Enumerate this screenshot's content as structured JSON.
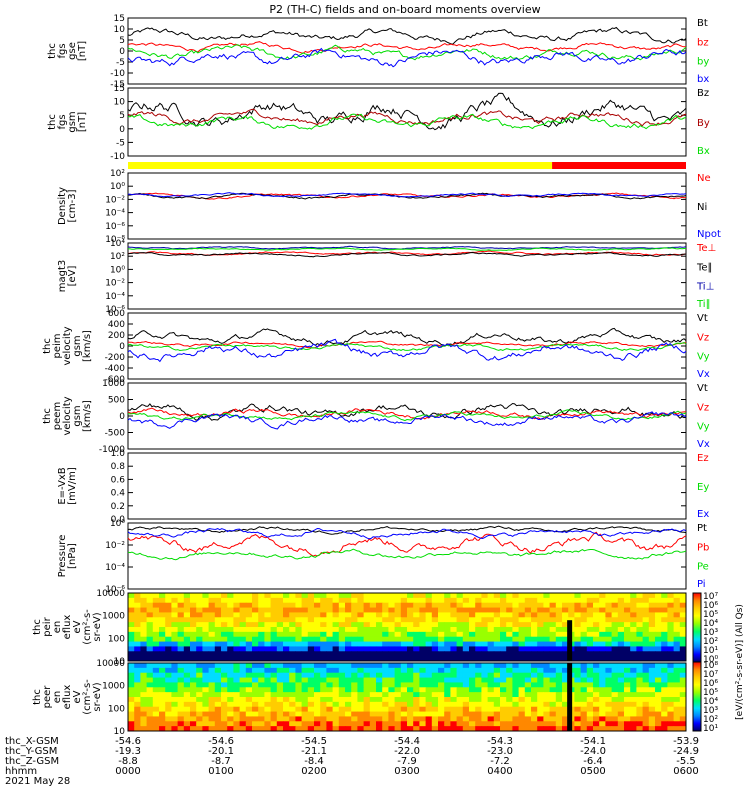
{
  "title": "P2 (TH-C) fields and on-board moments overview",
  "colors": {
    "black": "#000000",
    "red": "#ff0000",
    "green": "#00dd00",
    "blue": "#0000ff",
    "yellow": "#ffff00"
  },
  "chart_data": [
    {
      "id": "fgs-gse",
      "type": "line",
      "ylabel": [
        "thc",
        "fgs",
        "gse",
        "[nT]"
      ],
      "ylim": [
        -15,
        15
      ],
      "yticks": [
        "15",
        "10",
        "5",
        "0",
        "-5",
        "-10",
        "-15"
      ],
      "series": [
        {
          "name": "Bt",
          "color": "#000000",
          "level": 7,
          "amp": 3
        },
        {
          "name": "bz",
          "color": "#ff0000",
          "level": 2,
          "amp": 2
        },
        {
          "name": "by",
          "color": "#00dd00",
          "level": -1,
          "amp": 3
        },
        {
          "name": "bx",
          "color": "#0000ff",
          "level": -3,
          "amp": 4
        }
      ]
    },
    {
      "id": "fgs-gsm",
      "type": "line",
      "ylabel": [
        "thc",
        "fgs",
        "gsm",
        "[nT]"
      ],
      "ylim": [
        -15,
        15
      ],
      "yticks": [
        "15",
        "10",
        "5",
        "0",
        "-5",
        "-10"
      ],
      "series": [
        {
          "name": "Bz",
          "color": "#000000",
          "level": 4,
          "amp": 6
        },
        {
          "name": "By",
          "color": "#aa0000",
          "level": 2,
          "amp": 3
        },
        {
          "name": "Bx",
          "color": "#00dd00",
          "level": 0,
          "amp": 3
        }
      ]
    },
    {
      "id": "mode-bar",
      "type": "bar",
      "segments": [
        {
          "from": 0,
          "to": 0.76,
          "color": "#ffff00"
        },
        {
          "from": 0.76,
          "to": 1,
          "color": "#ff0000"
        }
      ]
    },
    {
      "id": "density",
      "type": "line",
      "log": true,
      "ylabel": [
        "Density",
        "[cm-3]"
      ],
      "ylim": [
        -8,
        3
      ],
      "yticks": [
        "10²",
        "10⁰",
        "10⁻²",
        "10⁻⁴",
        "10⁻⁶",
        "10⁻⁸"
      ],
      "series": [
        {
          "name": "Ne",
          "color": "#ff0000",
          "level": -0.8,
          "amp": 0.4
        },
        {
          "name": "Ni",
          "color": "#000000",
          "level": -0.9,
          "amp": 0.4
        },
        {
          "name": "Npot",
          "color": "#0000ff",
          "level": -0.7,
          "amp": 0.3
        }
      ]
    },
    {
      "id": "temperature",
      "type": "line",
      "log": true,
      "ylabel": [
        "magt3",
        "[eV]"
      ],
      "ylim": [
        -7,
        4
      ],
      "yticks": [
        "10⁴",
        "10²",
        "10⁰",
        "10⁻²",
        "10⁻⁴",
        "10⁻⁶"
      ],
      "series": [
        {
          "name": "Te⊥",
          "color": "#ff0000",
          "level": 2.3,
          "amp": 0.3
        },
        {
          "name": "Te∥",
          "color": "#000000",
          "level": 2.1,
          "amp": 0.3
        },
        {
          "name": "Ti⊥",
          "color": "#0000aa",
          "level": 3.2,
          "amp": 0.2
        },
        {
          "name": "Ti∥",
          "color": "#00dd00",
          "level": 3.0,
          "amp": 0.2
        }
      ]
    },
    {
      "id": "peim-velocity",
      "type": "line",
      "ylabel": [
        "thc",
        "peim",
        "velocity",
        "gsm",
        "[km/s]"
      ],
      "ylim": [
        -600,
        600
      ],
      "yticks": [
        "600",
        "400",
        "200",
        "0",
        "-200",
        "-400",
        "-600"
      ],
      "series": [
        {
          "name": "Vt",
          "color": "#000000",
          "level": 150,
          "amp": 120
        },
        {
          "name": "Vz",
          "color": "#ff0000",
          "level": 40,
          "amp": 50
        },
        {
          "name": "Vy",
          "color": "#00dd00",
          "level": -20,
          "amp": 60
        },
        {
          "name": "Vx",
          "color": "#0000ff",
          "level": -100,
          "amp": 150
        }
      ]
    },
    {
      "id": "peem-velocity",
      "type": "line",
      "ylabel": [
        "thc",
        "peem",
        "velocity",
        "gsm",
        "[km/s]"
      ],
      "ylim": [
        -1000,
        1000
      ],
      "yticks": [
        "1000",
        "500",
        "0",
        "-500",
        "-1000"
      ],
      "series": [
        {
          "name": "Vt",
          "color": "#000000",
          "level": 150,
          "amp": 250
        },
        {
          "name": "Vz",
          "color": "#ff0000",
          "level": 80,
          "amp": 150
        },
        {
          "name": "Vy",
          "color": "#00dd00",
          "level": 0,
          "amp": 120
        },
        {
          "name": "Vx",
          "color": "#0000ff",
          "level": -100,
          "amp": 200
        }
      ]
    },
    {
      "id": "efield",
      "type": "line",
      "ylabel": [
        "E=-VxB",
        "[mV/m]"
      ],
      "ylim": [
        0,
        1
      ],
      "yticks": [
        "1.0",
        "0.8",
        "0.6",
        "0.4",
        "0.2",
        "0.0"
      ],
      "series": [
        {
          "name": "Ez",
          "color": "#ff0000"
        },
        {
          "name": "Ey",
          "color": "#00dd00"
        },
        {
          "name": "Ex",
          "color": "#0000ff"
        }
      ]
    },
    {
      "id": "pressure",
      "type": "line",
      "log": true,
      "ylabel": [
        "Pressure",
        "[nPa]"
      ],
      "ylim": [
        -6,
        0
      ],
      "yticks": [
        "10⁰",
        "10⁻²",
        "10⁻⁴",
        "10⁻⁶"
      ],
      "series": [
        {
          "name": "Pt",
          "color": "#000000",
          "level": -0.6,
          "amp": 0.3
        },
        {
          "name": "Pb",
          "color": "#ff0000",
          "level": -1.8,
          "amp": 0.8
        },
        {
          "name": "Pe",
          "color": "#00dd00",
          "level": -2.8,
          "amp": 0.4
        },
        {
          "name": "Pi",
          "color": "#0000ff",
          "level": -0.9,
          "amp": 0.4
        }
      ]
    },
    {
      "id": "peir-spectrogram",
      "type": "heatmap",
      "ylabel": [
        "thc",
        "peir",
        "en",
        "eflux",
        "eV",
        "(cm²-s-",
        "sr-eV)"
      ],
      "log": true,
      "ylim": [
        1,
        4.2
      ],
      "yticks": [
        "10000",
        "1000",
        "100",
        "10"
      ]
    },
    {
      "id": "peer-spectrogram",
      "type": "heatmap",
      "ylabel": [
        "thc",
        "peer",
        "en",
        "eflux",
        "eV",
        "(cm²-s-",
        "sr-eV)"
      ],
      "log": true,
      "ylim": [
        1,
        4.2
      ],
      "yticks": [
        "10000",
        "1000",
        "100",
        "10"
      ]
    }
  ],
  "colorbar": {
    "label": "[eV/(cm²-s-sr-eV)] (All Qs)",
    "upper_ticks": [
      "10⁷",
      "10⁶",
      "10⁵",
      "10⁴",
      "10³",
      "10²",
      "10¹",
      "10⁰"
    ],
    "lower_ticks": [
      "10⁸",
      "10⁷",
      "10⁶",
      "10⁵",
      "10⁴",
      "10³",
      "10²",
      "10¹"
    ]
  },
  "xaxis": {
    "rows": [
      {
        "label": "thc_X-GSM",
        "values": [
          "-54.6",
          "-54.6",
          "-54.5",
          "-54.4",
          "-54.3",
          "-54.1",
          "-53.9"
        ]
      },
      {
        "label": "thc_Y-GSM",
        "values": [
          "-19.3",
          "-20.1",
          "-21.1",
          "-22.0",
          "-23.0",
          "-24.0",
          "-24.9"
        ]
      },
      {
        "label": "thc_Z-GSM",
        "values": [
          "-8.8",
          "-8.7",
          "-8.4",
          "-7.9",
          "-7.2",
          "-6.4",
          "-5.5"
        ]
      },
      {
        "label": "hhmm",
        "values": [
          "0000",
          "0100",
          "0200",
          "0300",
          "0400",
          "0500",
          "0600"
        ]
      }
    ],
    "date": "2021 May 28"
  }
}
